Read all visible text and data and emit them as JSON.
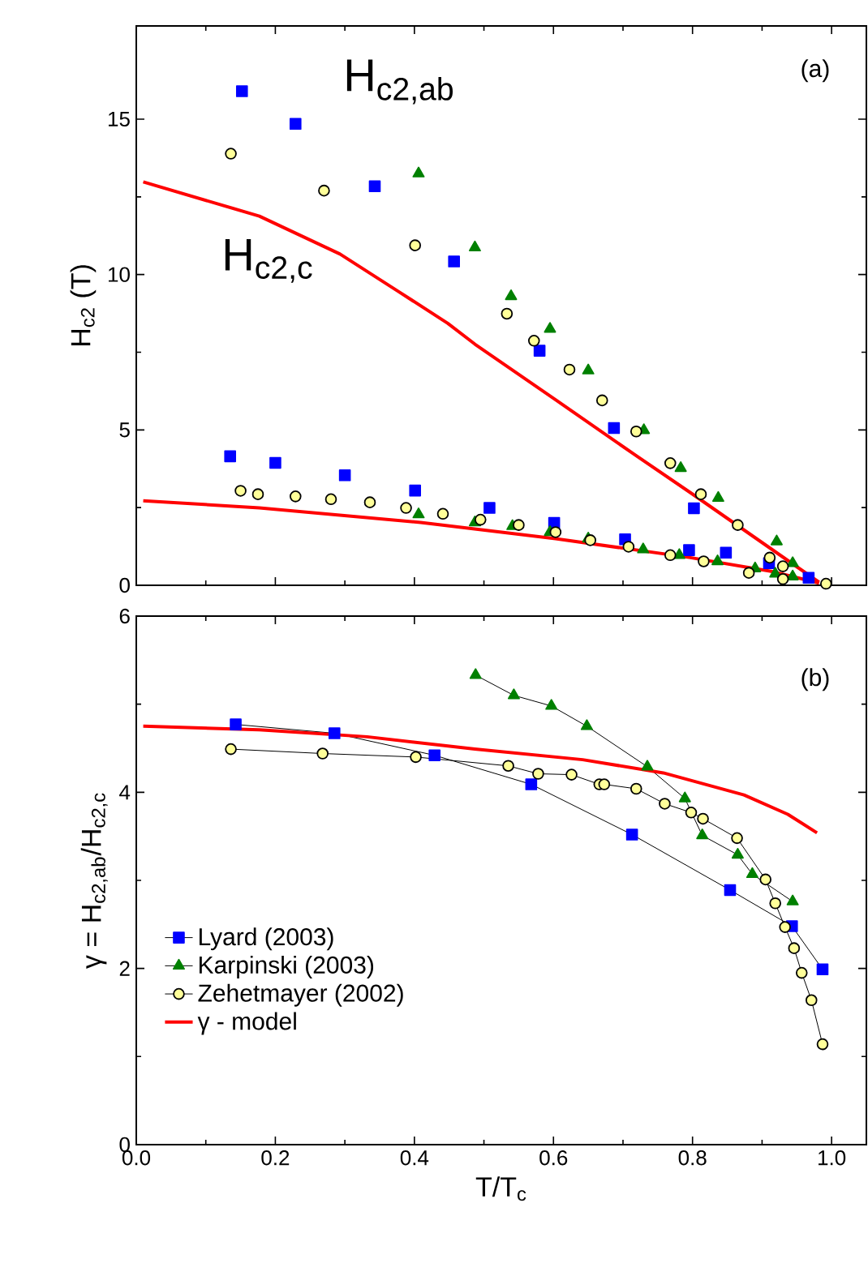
{
  "chart_data": [
    {
      "type": "scatter",
      "ylabel": "H$_{c2}$ (T)",
      "xlim": [
        0,
        1.05
      ],
      "ylim": [
        0,
        18
      ],
      "xticks": [
        0,
        0.2,
        0.4,
        0.6,
        0.8,
        1.0
      ],
      "yticks": [
        0,
        5,
        10,
        15
      ],
      "tick_labels": "y",
      "annotations": [
        "(a)",
        "H$_{c2,ab}$",
        "H$_{c2,c}$"
      ],
      "series": [
        {
          "color": "#0000ff",
          "marker": "square",
          "x": [
            0.152,
            0.229,
            0.343,
            0.457,
            0.58,
            0.687,
            0.802,
            0.91,
            0.967
          ],
          "values": [
            15.9,
            14.85,
            12.84,
            10.42,
            7.55,
            5.06,
            2.48,
            0.71,
            0.24
          ]
        },
        {
          "color": "#0000ff",
          "marker": "square",
          "x": [
            0.135,
            0.2,
            0.3,
            0.401,
            0.508,
            0.601,
            0.703,
            0.795,
            0.848
          ],
          "values": [
            4.15,
            3.94,
            3.54,
            3.05,
            2.49,
            2.01,
            1.48,
            1.13,
            1.05
          ]
        },
        {
          "color": "#008000",
          "marker": "triangle",
          "x": [
            0.406,
            0.487,
            0.539,
            0.595,
            0.65,
            0.73,
            0.783,
            0.837,
            0.921,
            0.944
          ],
          "values": [
            13.25,
            10.87,
            9.3,
            8.25,
            6.91,
            4.99,
            3.77,
            2.81,
            1.41,
            0.71
          ]
        },
        {
          "color": "#008000",
          "marker": "triangle",
          "x": [
            0.406,
            0.487,
            0.541,
            0.595,
            0.65,
            0.729,
            0.781,
            0.836,
            0.89,
            0.919,
            0.944
          ],
          "values": [
            2.28,
            2.02,
            1.9,
            1.71,
            1.5,
            1.15,
            0.97,
            0.77,
            0.54,
            0.37,
            0.28
          ]
        },
        {
          "color": "#ffff99",
          "marker": "circle",
          "x": [
            0.136,
            0.27,
            0.401,
            0.533,
            0.572,
            0.623,
            0.67,
            0.719,
            0.768,
            0.812,
            0.865,
            0.911,
            0.93,
            0.992
          ],
          "values": [
            13.89,
            12.7,
            10.94,
            8.74,
            7.87,
            6.94,
            5.95,
            4.95,
            3.93,
            2.93,
            1.94,
            0.89,
            0.61,
            0.05
          ]
        },
        {
          "color": "#ffff99",
          "marker": "circle",
          "x": [
            0.15,
            0.175,
            0.229,
            0.28,
            0.336,
            0.388,
            0.441,
            0.495,
            0.55,
            0.603,
            0.653,
            0.708,
            0.768,
            0.816,
            0.881,
            0.93
          ],
          "values": [
            3.04,
            2.93,
            2.86,
            2.77,
            2.67,
            2.49,
            2.3,
            2.11,
            1.94,
            1.71,
            1.45,
            1.24,
            0.97,
            0.77,
            0.4,
            0.2
          ]
        },
        {
          "type": "line",
          "color": "#ff0000",
          "marker": "none",
          "x": [
            0.01,
            0.177,
            0.293,
            0.378,
            0.448,
            0.487,
            0.603,
            0.719,
            0.797,
            0.874,
            0.951,
            0.982
          ],
          "values": [
            12.98,
            11.88,
            10.66,
            9.44,
            8.43,
            7.76,
            5.97,
            4.17,
            2.98,
            1.78,
            0.58,
            0.1
          ]
        },
        {
          "type": "line",
          "color": "#ff0000",
          "marker": "none",
          "x": [
            0.01,
            0.177,
            0.409,
            0.603,
            0.797,
            0.913,
            0.982
          ],
          "values": [
            2.72,
            2.49,
            2.02,
            1.5,
            0.89,
            0.45,
            0.07
          ]
        }
      ]
    },
    {
      "type": "line",
      "xlabel": "T/T$_{c}$",
      "ylabel": "γ = H$_{c2,ab}$/H$_{c2,c}$",
      "xlim": [
        0,
        1.05
      ],
      "ylim": [
        0,
        6
      ],
      "xticks": [
        {
          "value": 0,
          "label": "0.0"
        },
        0.2,
        0.4,
        0.6,
        0.8,
        {
          "value": 1.0,
          "label": "1.0"
        }
      ],
      "yticks": [
        0,
        2,
        4,
        6
      ],
      "legend": "bottom left",
      "annotations": [
        "(b)"
      ],
      "series": [
        {
          "name": "Lyard (2003)",
          "color": "#0000ff",
          "marker": "square",
          "x": [
            0.143,
            0.285,
            0.429,
            0.568,
            0.713,
            0.854,
            0.943,
            0.987
          ],
          "values": [
            4.77,
            4.67,
            4.42,
            4.09,
            3.52,
            2.89,
            2.48,
            1.99
          ]
        },
        {
          "name": "Karpinski (2003)",
          "color": "#008000",
          "marker": "triangle",
          "x": [
            0.488,
            0.543,
            0.597,
            0.648,
            0.735,
            0.789,
            0.814,
            0.865,
            0.886,
            0.944
          ],
          "values": [
            5.33,
            5.1,
            4.98,
            4.75,
            4.29,
            3.93,
            3.51,
            3.29,
            3.07,
            2.76
          ]
        },
        {
          "name": "Zehetmayer (2002)",
          "color": "#ffff99",
          "marker": "circle",
          "x": [
            0.136,
            0.268,
            0.402,
            0.535,
            0.578,
            0.626,
            0.666,
            0.673,
            0.719,
            0.76,
            0.798,
            0.815,
            0.864,
            0.905,
            0.919,
            0.933,
            0.946,
            0.957,
            0.971,
            0.987
          ],
          "values": [
            4.49,
            4.44,
            4.4,
            4.3,
            4.21,
            4.2,
            4.09,
            4.09,
            4.04,
            3.87,
            3.77,
            3.7,
            3.48,
            3.01,
            2.74,
            2.47,
            2.23,
            1.95,
            1.64,
            1.14
          ]
        },
        {
          "name": "γ - model",
          "color": "#ff0000",
          "marker": "none",
          "x": [
            0.01,
            0.177,
            0.332,
            0.487,
            0.642,
            0.758,
            0.874,
            0.937,
            0.979
          ],
          "values": [
            4.75,
            4.71,
            4.63,
            4.49,
            4.37,
            4.22,
            3.97,
            3.75,
            3.54
          ]
        }
      ]
    }
  ]
}
